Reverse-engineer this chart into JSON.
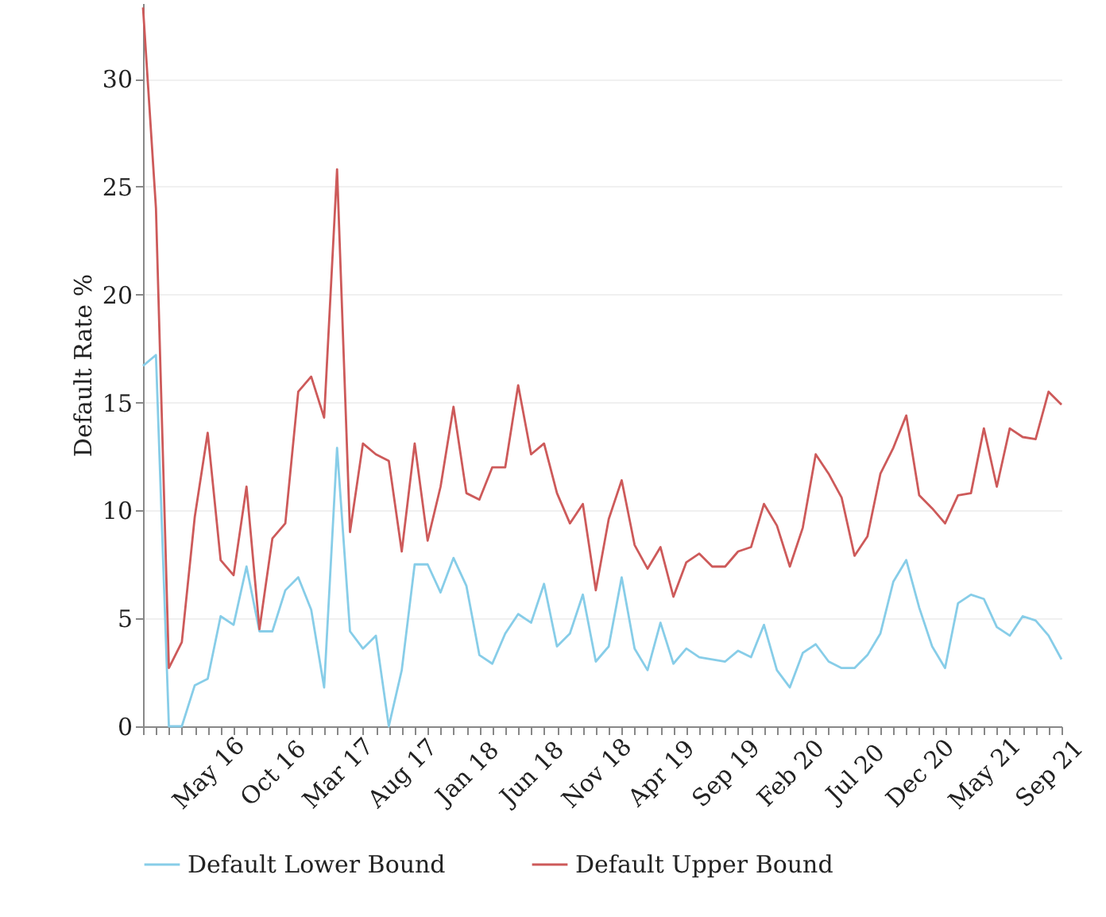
{
  "chart_data": {
    "type": "line",
    "ylabel": "Default Rate %",
    "categories": [
      null,
      null,
      null,
      null,
      null,
      "May 16",
      null,
      null,
      null,
      null,
      "Oct 16",
      null,
      null,
      null,
      null,
      "Mar 17",
      null,
      null,
      null,
      null,
      "Aug 17",
      null,
      null,
      null,
      null,
      "Jan 18",
      null,
      null,
      null,
      null,
      "Jun 18",
      null,
      null,
      null,
      null,
      "Nov 18",
      null,
      null,
      null,
      null,
      "Apr 19",
      null,
      null,
      null,
      null,
      "Sep 19",
      null,
      null,
      null,
      null,
      "Feb 20",
      null,
      null,
      null,
      null,
      "Jul 20",
      null,
      null,
      null,
      null,
      "Dec 20",
      null,
      null,
      null,
      null,
      "May 21",
      null,
      null,
      null,
      null,
      "Sep 21",
      null
    ],
    "series": [
      {
        "name": "Default Lower Bound",
        "color": "#87cde8",
        "values": [
          16.7,
          17.2,
          0,
          0,
          1.9,
          2.2,
          5.1,
          4.7,
          7.4,
          4.4,
          4.4,
          6.3,
          6.9,
          5.4,
          1.8,
          12.9,
          4.4,
          3.6,
          4.2,
          0,
          2.6,
          7.5,
          7.5,
          6.2,
          7.8,
          6.5,
          3.3,
          2.9,
          4.3,
          5.2,
          4.8,
          6.6,
          3.7,
          4.3,
          6.1,
          3.0,
          3.7,
          6.9,
          3.6,
          2.6,
          4.8,
          2.9,
          3.6,
          3.2,
          3.1,
          3.0,
          3.5,
          3.2,
          4.7,
          2.6,
          1.8,
          3.4,
          3.8,
          3.0,
          2.7,
          2.7,
          3.3,
          4.3,
          6.7,
          7.7,
          5.5,
          3.7,
          2.7,
          5.7,
          6.1,
          5.9,
          4.6,
          4.2,
          5.1,
          4.9,
          4.2,
          3.1
        ]
      },
      {
        "name": "Default Upper Bound",
        "color": "#cd5a5a",
        "values": [
          33.3,
          24.0,
          2.7,
          3.9,
          9.7,
          13.6,
          7.7,
          7.0,
          11.1,
          4.5,
          8.7,
          9.4,
          15.5,
          16.2,
          14.3,
          25.8,
          9.0,
          13.1,
          12.6,
          12.3,
          8.1,
          13.1,
          8.6,
          11.1,
          14.8,
          10.8,
          10.5,
          12.0,
          12.0,
          15.8,
          12.6,
          13.1,
          10.8,
          9.4,
          10.3,
          6.3,
          9.6,
          11.4,
          8.4,
          7.3,
          8.3,
          6.0,
          7.6,
          8.0,
          7.4,
          7.4,
          8.1,
          8.3,
          10.3,
          9.3,
          7.4,
          9.2,
          12.6,
          11.7,
          10.6,
          7.9,
          8.8,
          11.7,
          12.9,
          14.4,
          10.7,
          10.1,
          9.4,
          10.7,
          10.8,
          13.8,
          11.1,
          13.8,
          13.4,
          13.3,
          15.5,
          14.9
        ]
      }
    ],
    "ylim": [
      0,
      33.5
    ],
    "yticks": [
      0,
      5,
      10,
      15,
      20,
      25,
      30
    ],
    "grid": "y",
    "legend": "bottom",
    "marker": "none",
    "line_style": "solid"
  }
}
